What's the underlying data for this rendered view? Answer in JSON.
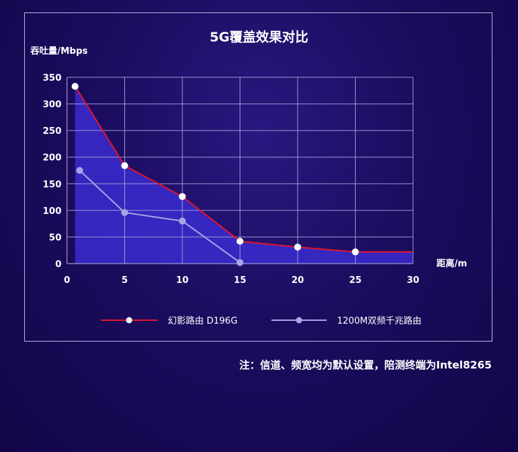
{
  "chart_data": {
    "type": "line",
    "title": "5G覆盖效果对比",
    "ylabel": "吞吐量/Mbps",
    "xlabel": "距离/m",
    "xlim": [
      0,
      30
    ],
    "ylim": [
      0,
      350
    ],
    "x_ticks": [
      0,
      5,
      10,
      15,
      20,
      25,
      30
    ],
    "y_ticks": [
      0,
      50,
      100,
      150,
      200,
      250,
      300,
      350
    ],
    "grid": true,
    "legend_position": "bottom",
    "series": [
      {
        "name": "幻影路由 D196G",
        "color": "#e0162b",
        "marker_color": "#ffffff",
        "fill_area": true,
        "x": [
          0.7,
          5,
          10,
          15,
          20,
          25,
          30
        ],
        "y": [
          333,
          184,
          126,
          42,
          31,
          22,
          22
        ],
        "markers": [
          true,
          true,
          true,
          true,
          true,
          true,
          false
        ]
      },
      {
        "name": "1200M双频千兆路由",
        "color": "#a9a4e6",
        "marker_color": "#a9a4e6",
        "fill_area": false,
        "x": [
          1.1,
          5,
          10,
          15
        ],
        "y": [
          175,
          96,
          80,
          2
        ],
        "markers": [
          true,
          true,
          true,
          true
        ]
      }
    ]
  },
  "colors": {
    "fill": "#3b2bd0",
    "grid": "#9c96cf",
    "panel_border": "#b9b3e2"
  },
  "footnote": "注：信道、频宽均为默认设置，陪测终端为Intel8265"
}
